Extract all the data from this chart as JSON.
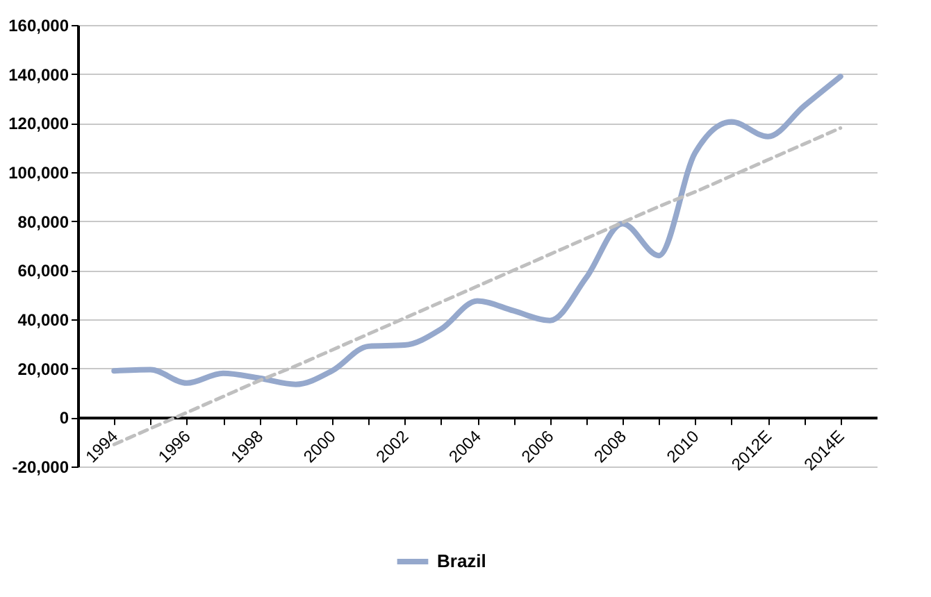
{
  "chart_data": {
    "type": "line",
    "categories": [
      "1994",
      null,
      "1996",
      null,
      "1998",
      null,
      "2000",
      null,
      "2002",
      null,
      "2004",
      null,
      "2006",
      null,
      "2008",
      null,
      "2010",
      null,
      "2012E",
      null,
      "2014E"
    ],
    "series": [
      {
        "name": "Brazil",
        "color": "#95a8cc",
        "line_style": "solid",
        "values": [
          19000,
          19500,
          14000,
          18000,
          16000,
          13500,
          19000,
          29000,
          29500,
          36000,
          47500,
          43500,
          39500,
          57000,
          79000,
          66000,
          108000,
          120500,
          114500,
          127000,
          139000
        ]
      },
      {
        "type": "line",
        "color": "#bfbfbf",
        "line_style": "dashed",
        "values": [
          -11000,
          -4500,
          2000,
          8500,
          15000,
          21000,
          27500,
          34000,
          40500,
          47000,
          53500,
          60000,
          66500,
          73000,
          79500,
          86000,
          92000,
          98500,
          105000,
          111500,
          118000
        ]
      }
    ],
    "ylim": [
      -20000,
      160000
    ],
    "yticks": [
      {
        "value": -20000,
        "label": "-20,000"
      },
      0,
      {
        "value": 20000,
        "label": "20,000"
      },
      {
        "value": 40000,
        "label": "40,000"
      },
      {
        "value": 60000,
        "label": "60,000"
      },
      {
        "value": 80000,
        "label": "80,000"
      },
      {
        "value": 100000,
        "label": "100,000"
      },
      {
        "value": 120000,
        "label": "120,000"
      },
      {
        "value": 140000,
        "label": "140,000"
      },
      {
        "value": 160000,
        "label": "160,000"
      }
    ],
    "grid": "y",
    "legend": "bottom",
    "marker": "none"
  }
}
